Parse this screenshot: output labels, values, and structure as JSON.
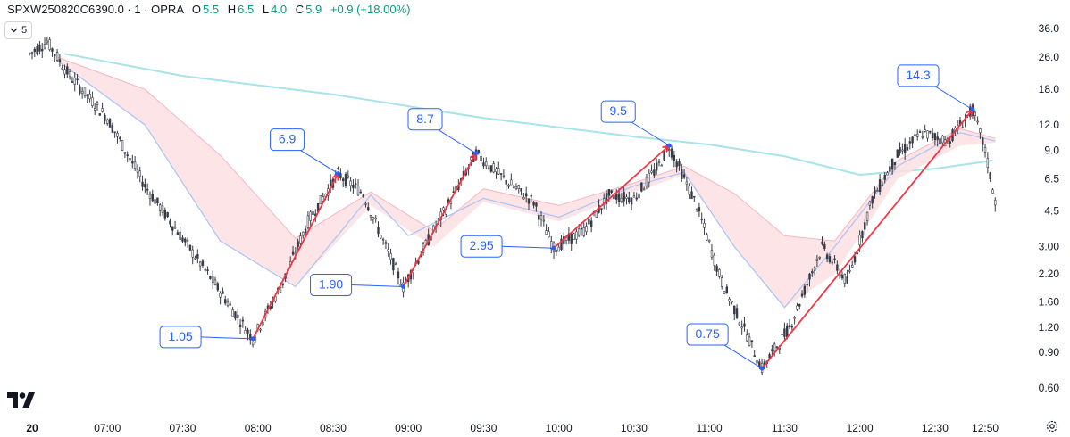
{
  "header": {
    "symbol": "SPXW250820C6390.0 · 1 · OPRA",
    "open_label": "O",
    "open": "5.5",
    "high_label": "H",
    "high": "6.5",
    "low_label": "L",
    "low": "4.0",
    "close_label": "C",
    "close": "5.9",
    "change": "+0.9 (+18.00%)"
  },
  "interval_button": {
    "label": "5"
  },
  "icons": {
    "interval": "chevron-down-icon",
    "logo": "tradingview-logo",
    "settings": "gear-icon"
  },
  "colors": {
    "up": "#089981",
    "down": "#f23645",
    "candle": "#363a45",
    "arrow": "#f23645",
    "callout": "#2962ff",
    "ribbon_red": "#fcdfe3",
    "ribbon_blue": "#e3ebff",
    "long_ma": "#a7e3e8",
    "mid_ma": "#a9c4f5"
  },
  "chart_data": {
    "type": "candlestick",
    "y_scale": "log",
    "y_tick_labels": [
      "36.0",
      "26.0",
      "18.0",
      "12.0",
      "9.0",
      "6.5",
      "4.5",
      "3.00",
      "2.20",
      "1.60",
      "1.20",
      "0.90",
      "0.60"
    ],
    "y_ticks": [
      36,
      26,
      18,
      12,
      9,
      6.5,
      4.5,
      3.0,
      2.2,
      1.6,
      1.2,
      0.9,
      0.6
    ],
    "x_ticks": [
      {
        "time": "06:30",
        "label": "20"
      },
      {
        "time": "07:00",
        "label": "07:00"
      },
      {
        "time": "07:30",
        "label": "07:30"
      },
      {
        "time": "08:00",
        "label": "08:00"
      },
      {
        "time": "08:30",
        "label": "08:30"
      },
      {
        "time": "09:00",
        "label": "09:00"
      },
      {
        "time": "09:30",
        "label": "09:30"
      },
      {
        "time": "10:00",
        "label": "10:00"
      },
      {
        "time": "10:30",
        "label": "10:30"
      },
      {
        "time": "11:00",
        "label": "11:00"
      },
      {
        "time": "11:30",
        "label": "11:30"
      },
      {
        "time": "12:00",
        "label": "12:00"
      },
      {
        "time": "12:30",
        "label": "12:30"
      },
      {
        "time": "12:50",
        "label": "12:50"
      }
    ],
    "price_path": [
      [
        "06:29",
        27
      ],
      [
        "06:36",
        31
      ],
      [
        "06:45",
        21
      ],
      [
        "07:00",
        13
      ],
      [
        "07:15",
        6.0
      ],
      [
        "07:30",
        3.3
      ],
      [
        "07:45",
        1.8
      ],
      [
        "07:58",
        1.05
      ],
      [
        "08:10",
        2.0
      ],
      [
        "08:20",
        4.0
      ],
      [
        "08:32",
        6.9
      ],
      [
        "08:42",
        5.5
      ],
      [
        "08:50",
        3.2
      ],
      [
        "08:58",
        1.9
      ],
      [
        "09:10",
        3.6
      ],
      [
        "09:20",
        6.0
      ],
      [
        "09:27",
        8.7
      ],
      [
        "09:40",
        6.2
      ],
      [
        "09:50",
        5.0
      ],
      [
        "09:58",
        2.95
      ],
      [
        "10:10",
        3.6
      ],
      [
        "10:20",
        5.4
      ],
      [
        "10:30",
        5.2
      ],
      [
        "10:40",
        7.6
      ],
      [
        "10:44",
        9.5
      ],
      [
        "10:55",
        4.8
      ],
      [
        "11:05",
        2.0
      ],
      [
        "11:15",
        1.1
      ],
      [
        "11:21",
        0.75
      ],
      [
        "11:32",
        1.2
      ],
      [
        "11:45",
        3.0
      ],
      [
        "11:55",
        2.0
      ],
      [
        "12:05",
        5.2
      ],
      [
        "12:15",
        8.5
      ],
      [
        "12:25",
        11.0
      ],
      [
        "12:35",
        10.0
      ],
      [
        "12:45",
        14.3
      ],
      [
        "12:50",
        9.0
      ],
      [
        "12:54",
        5.0
      ]
    ],
    "moving_averages": {
      "long": [
        [
          "06:43",
          27
        ],
        [
          "07:30",
          21
        ],
        [
          "08:30",
          17
        ],
        [
          "09:30",
          13
        ],
        [
          "10:30",
          10.5
        ],
        [
          "11:00",
          9.6
        ],
        [
          "11:30",
          8.4
        ],
        [
          "12:00",
          6.8
        ],
        [
          "12:30",
          7.3
        ],
        [
          "12:53",
          8.0
        ]
      ],
      "mid": [
        [
          "06:40",
          25
        ],
        [
          "07:15",
          12
        ],
        [
          "07:45",
          3.2
        ],
        [
          "08:15",
          1.9
        ],
        [
          "08:45",
          5.4
        ],
        [
          "09:00",
          3.4
        ],
        [
          "09:30",
          5.2
        ],
        [
          "10:00",
          4.2
        ],
        [
          "10:30",
          6.0
        ],
        [
          "10:50",
          7.0
        ],
        [
          "11:10",
          3.0
        ],
        [
          "11:30",
          1.5
        ],
        [
          "11:50",
          3.0
        ],
        [
          "12:15",
          7.5
        ],
        [
          "12:40",
          11.0
        ],
        [
          "12:54",
          10.0
        ]
      ],
      "ribbon_upper": [
        [
          "06:40",
          26
        ],
        [
          "07:15",
          18
        ],
        [
          "07:45",
          8.5
        ],
        [
          "08:15",
          3.3
        ],
        [
          "08:45",
          5.6
        ],
        [
          "09:10",
          3.6
        ],
        [
          "09:30",
          5.8
        ],
        [
          "10:00",
          4.8
        ],
        [
          "10:30",
          6.2
        ],
        [
          "10:50",
          7.5
        ],
        [
          "11:10",
          5.5
        ],
        [
          "11:30",
          3.4
        ],
        [
          "11:50",
          3.2
        ],
        [
          "12:15",
          8.0
        ],
        [
          "12:40",
          11.5
        ],
        [
          "12:54",
          10.3
        ]
      ],
      "ribbon_lower": [
        [
          "06:40",
          25
        ],
        [
          "07:15",
          12
        ],
        [
          "07:45",
          3.2
        ],
        [
          "08:15",
          1.9
        ],
        [
          "08:45",
          4.8
        ],
        [
          "09:10",
          3.0
        ],
        [
          "09:30",
          5.0
        ],
        [
          "10:00",
          4.0
        ],
        [
          "10:30",
          5.6
        ],
        [
          "10:50",
          6.8
        ],
        [
          "11:10",
          3.0
        ],
        [
          "11:30",
          1.5
        ],
        [
          "11:50",
          2.2
        ],
        [
          "12:15",
          6.5
        ],
        [
          "12:40",
          9.5
        ],
        [
          "12:54",
          9.8
        ]
      ]
    },
    "swing_arrows": [
      {
        "from": {
          "time": "07:58",
          "value": 1.05
        },
        "to": {
          "time": "08:32",
          "value": 6.9
        }
      },
      {
        "from": {
          "time": "08:58",
          "value": 1.9
        },
        "to": {
          "time": "09:27",
          "value": 8.7
        }
      },
      {
        "from": {
          "time": "09:58",
          "value": 2.95
        },
        "to": {
          "time": "10:44",
          "value": 9.5
        }
      },
      {
        "from": {
          "time": "11:21",
          "value": 0.75
        },
        "to": {
          "time": "12:45",
          "value": 14.3
        }
      }
    ],
    "callouts": [
      {
        "text": "1.05",
        "time": "07:58",
        "value": 1.05,
        "position": "lower-left"
      },
      {
        "text": "6.9",
        "time": "08:32",
        "value": 6.9,
        "position": "upper-left"
      },
      {
        "text": "1.90",
        "time": "08:58",
        "value": 1.9,
        "position": "lower-left"
      },
      {
        "text": "8.7",
        "time": "09:27",
        "value": 8.7,
        "position": "upper-left"
      },
      {
        "text": "2.95",
        "time": "09:58",
        "value": 2.95,
        "position": "lower-left"
      },
      {
        "text": "9.5",
        "time": "10:44",
        "value": 9.5,
        "position": "upper-left"
      },
      {
        "text": "0.75",
        "time": "11:21",
        "value": 0.75,
        "position": "upper-left"
      },
      {
        "text": "14.3",
        "time": "12:45",
        "value": 14.3,
        "position": "upper-left"
      }
    ]
  }
}
